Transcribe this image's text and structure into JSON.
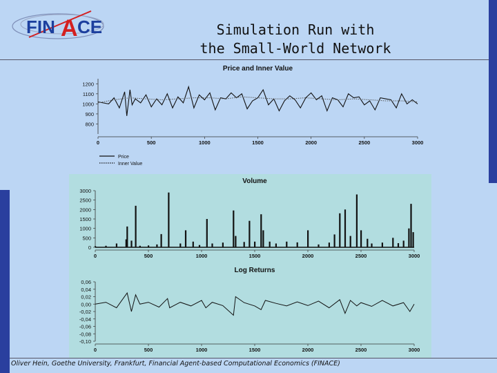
{
  "slide": {
    "title_line1": "Simulation Run with",
    "title_line2": "the Small-World Network",
    "footer": "Oliver Hein, Goethe University, Frankfurt, Financial Agent-based Computational Economics (FINACE)",
    "logo_text_left": "FIN",
    "logo_text_a": "A",
    "logo_text_right": "CE"
  },
  "colors": {
    "background": "#bcd6f4",
    "chart_panel": "#b2dde0",
    "accent_bar": "#2a3f9e",
    "logo_blue": "#1c3f9e",
    "logo_red": "#d42020"
  },
  "chart_data": [
    {
      "type": "line",
      "title": "Price and Inner Value",
      "xlim": [
        0,
        3000
      ],
      "ylim": [
        700,
        1250
      ],
      "xticks": [
        "0",
        "500",
        "1000",
        "1500",
        "2000",
        "2500",
        "3000"
      ],
      "yticks": [
        "800",
        "900",
        "1000",
        "1100",
        "1200"
      ],
      "legend": "bottom-left",
      "series": [
        {
          "name": "Price",
          "style": "solid",
          "x": [
            0,
            100,
            150,
            200,
            250,
            270,
            300,
            320,
            350,
            400,
            450,
            500,
            550,
            600,
            650,
            700,
            750,
            800,
            850,
            900,
            950,
            1000,
            1050,
            1100,
            1150,
            1200,
            1250,
            1300,
            1350,
            1400,
            1450,
            1500,
            1550,
            1600,
            1650,
            1700,
            1750,
            1800,
            1850,
            1900,
            1950,
            2000,
            2050,
            2100,
            2150,
            2200,
            2250,
            2300,
            2350,
            2400,
            2450,
            2500,
            2550,
            2600,
            2650,
            2700,
            2750,
            2800,
            2850,
            2900,
            2950,
            3000
          ],
          "y": [
            1020,
            1000,
            1060,
            960,
            1120,
            880,
            1140,
            990,
            1050,
            1010,
            1090,
            970,
            1050,
            990,
            1100,
            960,
            1070,
            1010,
            1170,
            960,
            1090,
            1040,
            1110,
            940,
            1060,
            1050,
            1110,
            1060,
            1100,
            950,
            1030,
            1060,
            1140,
            990,
            1050,
            930,
            1030,
            1080,
            1040,
            960,
            1060,
            1110,
            1040,
            1080,
            930,
            1060,
            1040,
            970,
            1100,
            1060,
            1070,
            990,
            1030,
            940,
            1060,
            1050,
            1040,
            960,
            1100,
            1000,
            1040,
            1000
          ]
        },
        {
          "name": "Inner Value",
          "style": "dotted",
          "x": [
            0,
            150,
            300,
            450,
            600,
            750,
            900,
            1050,
            1200,
            1350,
            1500,
            1650,
            1800,
            1950,
            2100,
            2250,
            2400,
            2550,
            2700,
            2850,
            3000
          ],
          "y": [
            1010,
            1040,
            1060,
            1050,
            1040,
            1050,
            1060,
            1060,
            1050,
            1070,
            1060,
            1050,
            1050,
            1060,
            1050,
            1040,
            1050,
            1040,
            1030,
            1030,
            1020
          ]
        }
      ]
    },
    {
      "type": "bar",
      "title": "Volume",
      "xlim": [
        0,
        3000
      ],
      "ylim": [
        0,
        3000
      ],
      "xticks": [
        "0",
        "500",
        "1000",
        "1500",
        "2000",
        "2500",
        "3000"
      ],
      "yticks": [
        "0",
        "500",
        "1000",
        "1500",
        "2000",
        "2500",
        "3000"
      ],
      "x": [
        0,
        100,
        200,
        290,
        300,
        340,
        380,
        420,
        500,
        580,
        620,
        690,
        800,
        850,
        920,
        980,
        1050,
        1100,
        1200,
        1300,
        1320,
        1400,
        1450,
        1500,
        1560,
        1580,
        1640,
        1700,
        1800,
        1900,
        2000,
        2100,
        2200,
        2250,
        2300,
        2350,
        2400,
        2460,
        2500,
        2560,
        2600,
        2700,
        2800,
        2850,
        2900,
        2950,
        2970,
        2990
      ],
      "values": [
        60,
        80,
        200,
        420,
        1100,
        350,
        2200,
        80,
        100,
        150,
        700,
        2900,
        200,
        900,
        300,
        120,
        1500,
        200,
        250,
        1950,
        600,
        280,
        1400,
        300,
        1750,
        900,
        300,
        200,
        300,
        260,
        900,
        150,
        250,
        680,
        1800,
        2000,
        600,
        2800,
        900,
        450,
        200,
        250,
        500,
        220,
        350,
        1000,
        2300,
        800
      ]
    },
    {
      "type": "line",
      "title": "Log Returns",
      "xlim": [
        0,
        3000
      ],
      "ylim": [
        -0.1,
        0.06
      ],
      "xticks": [
        "0",
        "500",
        "1000",
        "1500",
        "2000",
        "2500",
        "3000"
      ],
      "yticks": [
        "0,06",
        "0,04",
        "0,02",
        "0,00",
        "-0,02",
        "-0,04",
        "-0,06",
        "-0,08",
        "-0,10"
      ],
      "series": [
        {
          "name": "",
          "style": "solid",
          "x": [
            0,
            100,
            200,
            300,
            340,
            380,
            420,
            500,
            600,
            680,
            700,
            800,
            900,
            1000,
            1040,
            1100,
            1200,
            1300,
            1320,
            1400,
            1500,
            1560,
            1600,
            1700,
            1800,
            1900,
            2000,
            2100,
            2200,
            2300,
            2350,
            2400,
            2460,
            2500,
            2600,
            2700,
            2800,
            2900,
            2960,
            3000
          ],
          "y": [
            0.0,
            0.005,
            -0.01,
            0.03,
            -0.02,
            0.025,
            0.0,
            0.005,
            -0.008,
            0.015,
            -0.01,
            0.005,
            -0.005,
            0.01,
            -0.01,
            0.005,
            -0.004,
            -0.03,
            0.02,
            0.004,
            -0.005,
            -0.015,
            0.01,
            0.002,
            -0.005,
            0.006,
            -0.004,
            0.008,
            -0.01,
            0.012,
            -0.025,
            0.01,
            -0.005,
            0.004,
            -0.006,
            0.01,
            -0.005,
            0.004,
            -0.02,
            0.0
          ]
        }
      ]
    }
  ]
}
